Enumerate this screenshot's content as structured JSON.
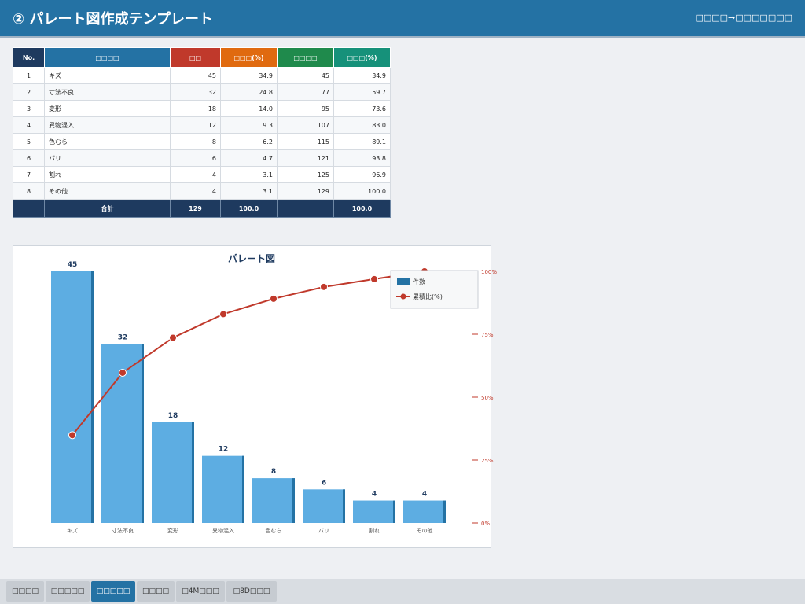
{
  "header": {
    "title": "② パレート図作成テンプレート",
    "breadcrumb": "□□□□→□□□□□□□"
  },
  "table": {
    "headers": [
      "No.",
      "□□□□",
      "□□",
      "□□□(%)",
      "□□□□",
      "□□□(%)"
    ],
    "rows": [
      {
        "no": "1",
        "item": "キズ",
        "count": "45",
        "ratio": "34.9",
        "cum": "45",
        "cumr": "34.9"
      },
      {
        "no": "2",
        "item": "寸法不良",
        "count": "32",
        "ratio": "24.8",
        "cum": "77",
        "cumr": "59.7"
      },
      {
        "no": "3",
        "item": "変形",
        "count": "18",
        "ratio": "14.0",
        "cum": "95",
        "cumr": "73.6"
      },
      {
        "no": "4",
        "item": "異物混入",
        "count": "12",
        "ratio": "9.3",
        "cum": "107",
        "cumr": "83.0"
      },
      {
        "no": "5",
        "item": "色むら",
        "count": "8",
        "ratio": "6.2",
        "cum": "115",
        "cumr": "89.1"
      },
      {
        "no": "6",
        "item": "バリ",
        "count": "6",
        "ratio": "4.7",
        "cum": "121",
        "cumr": "93.8"
      },
      {
        "no": "7",
        "item": "割れ",
        "count": "4",
        "ratio": "3.1",
        "cum": "125",
        "cumr": "96.9"
      },
      {
        "no": "8",
        "item": "その他",
        "count": "4",
        "ratio": "3.1",
        "cum": "129",
        "cumr": "100.0"
      }
    ],
    "total": {
      "label": "合計",
      "count": "129",
      "ratio": "100.0",
      "cum": "",
      "cumr": "100.0"
    }
  },
  "chart_data": {
    "type": "bar",
    "title": "パレート図",
    "categories": [
      "キズ",
      "寸法不良",
      "変形",
      "異物混入",
      "色むら",
      "バリ",
      "割れ",
      "その他"
    ],
    "series": [
      {
        "name": "件数",
        "type": "bar",
        "values": [
          45,
          32,
          18,
          12,
          8,
          6,
          4,
          4
        ]
      },
      {
        "name": "累積比(%)",
        "type": "line",
        "axis": "right",
        "values": [
          34.9,
          59.7,
          73.6,
          83.0,
          89.1,
          93.8,
          96.9,
          100.0
        ]
      }
    ],
    "ylim": [
      0,
      45
    ],
    "y2lim": [
      0,
      100
    ],
    "y2_ticks": [
      "0%",
      "25%",
      "50%",
      "75%",
      "100%"
    ],
    "legend_position": "top-right",
    "colors": {
      "bar": "#5dade2",
      "bar_edge": "#2472a4",
      "line": "#c0392b",
      "label": "#1e3a5f"
    }
  },
  "tabs": [
    {
      "label": "□□□□",
      "active": false
    },
    {
      "label": "□□□□□",
      "active": false
    },
    {
      "label": "□□□□□",
      "active": true
    },
    {
      "label": "□□□□",
      "active": false
    },
    {
      "label": "□4M□□□",
      "active": false
    },
    {
      "label": "□8D□□□",
      "active": false
    }
  ]
}
